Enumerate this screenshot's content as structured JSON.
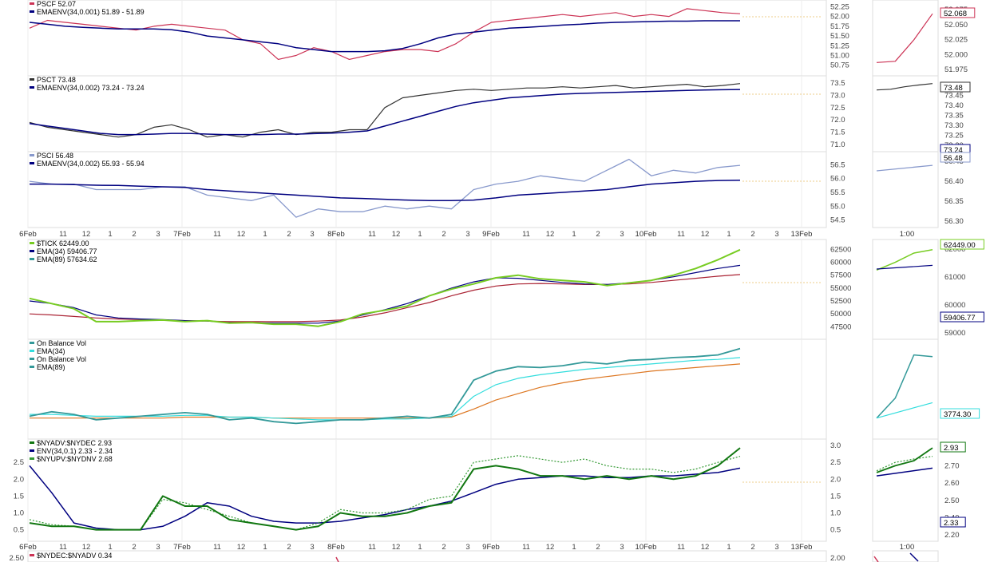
{
  "x_axis": {
    "labels": [
      "6Feb",
      "11",
      "12",
      "1",
      "2",
      "3",
      "7Feb",
      "11",
      "12",
      "1",
      "2",
      "3",
      "8Feb",
      "11",
      "12",
      "1",
      "2",
      "3",
      "9Feb",
      "11",
      "12",
      "1",
      "2",
      "3",
      "10Feb",
      "11",
      "12",
      "1",
      "2",
      "3",
      "13Feb"
    ],
    "side_label": "1:00"
  },
  "colors": {
    "pscf": "#cc3355",
    "psct": "#333333",
    "psci": "#8899cc",
    "envelope": "#000080",
    "tick": "#77cc22",
    "ema34": "#000080",
    "ema89": "#aa2233",
    "obv": "#339999",
    "obv_ema34": "#33dddd",
    "obv_ema89": "#dd7722",
    "adv": "#117711",
    "upv": "#339933"
  },
  "chart_data": [
    {
      "id": "pscf",
      "type": "line",
      "legend": [
        "PSCF 52.07",
        "EMAENV(34,0.001) 51.89 - 51.89"
      ],
      "y_ticks": [
        "52.25",
        "52.00",
        "51.75",
        "51.50",
        "51.25",
        "51.00",
        "50.75"
      ],
      "ylim": [
        50.6,
        52.3
      ],
      "side_ticks": [
        "52.075",
        "52.050",
        "52.025",
        "52.000",
        "51.975"
      ],
      "side_value": "52.068",
      "series": [
        {
          "role": "price",
          "values": [
            51.7,
            51.9,
            51.85,
            51.8,
            51.75,
            51.7,
            51.65,
            51.75,
            51.8,
            51.75,
            51.7,
            51.65,
            51.4,
            51.3,
            50.9,
            51.0,
            51.2,
            51.1,
            50.9,
            51.0,
            51.1,
            51.15,
            51.15,
            51.1,
            51.3,
            51.6,
            51.85,
            51.9,
            51.95,
            52.0,
            52.05,
            52.0,
            52.05,
            52.1,
            52.0,
            52.05,
            52.0,
            52.2,
            52.15,
            52.1,
            52.07
          ],
          "side": [
            50.82,
            50.85,
            51.4,
            52.07
          ]
        },
        {
          "role": "envelope",
          "values": [
            51.85,
            51.8,
            51.75,
            51.72,
            51.7,
            51.68,
            51.68,
            51.68,
            51.66,
            51.6,
            51.5,
            51.45,
            51.4,
            51.35,
            51.3,
            51.2,
            51.15,
            51.1,
            51.1,
            51.1,
            51.12,
            51.18,
            51.3,
            51.45,
            51.55,
            51.6,
            51.65,
            51.7,
            51.72,
            51.75,
            51.78,
            51.8,
            51.83,
            51.85,
            51.86,
            51.87,
            51.88,
            51.88,
            51.89,
            51.89,
            51.89
          ]
        }
      ]
    },
    {
      "id": "psct",
      "type": "line",
      "legend": [
        "PSCT 73.48",
        "EMAENV(34,0.002) 73.24 - 73.24"
      ],
      "y_ticks": [
        "73.5",
        "73.0",
        "72.5",
        "72.0",
        "71.5",
        "71.0"
      ],
      "ylim": [
        70.9,
        73.6
      ],
      "side_ticks": [
        "73.50",
        "73.45",
        "73.40",
        "73.35",
        "73.30",
        "73.25",
        "73.20"
      ],
      "side_value": "73.48",
      "side_value_2": "73.24",
      "series": [
        {
          "role": "price",
          "values": [
            71.9,
            71.7,
            71.6,
            71.5,
            71.4,
            71.3,
            71.4,
            71.7,
            71.8,
            71.6,
            71.3,
            71.4,
            71.3,
            71.5,
            71.6,
            71.4,
            71.5,
            71.5,
            71.6,
            71.6,
            72.5,
            72.9,
            73.0,
            73.1,
            73.2,
            73.25,
            73.2,
            73.25,
            73.3,
            73.3,
            73.35,
            73.3,
            73.35,
            73.4,
            73.3,
            73.35,
            73.4,
            73.45,
            73.35,
            73.4,
            73.48
          ],
          "side": [
            73.22,
            73.25,
            73.35,
            73.42,
            73.48
          ]
        },
        {
          "role": "envelope",
          "values": [
            71.85,
            71.75,
            71.65,
            71.55,
            71.45,
            71.4,
            71.4,
            71.42,
            71.45,
            71.45,
            71.42,
            71.4,
            71.4,
            71.4,
            71.42,
            71.42,
            71.44,
            71.46,
            71.5,
            71.55,
            71.75,
            71.95,
            72.15,
            72.35,
            72.55,
            72.7,
            72.8,
            72.9,
            72.95,
            73.0,
            73.05,
            73.08,
            73.1,
            73.12,
            73.14,
            73.16,
            73.18,
            73.2,
            73.22,
            73.23,
            73.24
          ]
        }
      ]
    },
    {
      "id": "psci",
      "type": "line",
      "legend": [
        "PSCI 56.48",
        "EMAENV(34,0.002) 55.93 - 55.94"
      ],
      "y_ticks": [
        "56.5",
        "56.0",
        "55.5",
        "55.0",
        "54.5"
      ],
      "ylim": [
        54.4,
        56.8
      ],
      "side_ticks": [
        "56.45",
        "56.40",
        "56.35",
        "56.30"
      ],
      "side_value": "56.48",
      "series": [
        {
          "role": "price",
          "values": [
            55.9,
            55.8,
            55.8,
            55.6,
            55.6,
            55.6,
            55.7,
            55.7,
            55.4,
            55.3,
            55.2,
            55.4,
            54.6,
            54.9,
            54.8,
            54.8,
            55.0,
            54.9,
            55.0,
            54.9,
            55.6,
            55.8,
            55.9,
            56.1,
            56.0,
            55.9,
            56.3,
            56.7,
            56.1,
            56.3,
            56.2,
            56.4,
            56.48
          ],
          "side": [
            56.28,
            56.48
          ]
        },
        {
          "role": "envelope",
          "values": [
            55.8,
            55.8,
            55.78,
            55.76,
            55.75,
            55.72,
            55.7,
            55.68,
            55.6,
            55.55,
            55.5,
            55.45,
            55.4,
            55.35,
            55.3,
            55.28,
            55.25,
            55.22,
            55.2,
            55.2,
            55.22,
            55.3,
            55.4,
            55.45,
            55.5,
            55.55,
            55.6,
            55.7,
            55.8,
            55.85,
            55.9,
            55.93,
            55.94
          ]
        }
      ]
    },
    {
      "id": "tick",
      "type": "line",
      "legend": [
        "$TICK 62449.00",
        "EMA(34) 59406.77",
        "EMA(89) 57634.62"
      ],
      "y_ticks": [
        "62500",
        "60000",
        "57500",
        "55000",
        "52500",
        "50000",
        "47500"
      ],
      "ylim": [
        46000,
        63500
      ],
      "side_ticks": [
        "62000",
        "61000",
        "60000",
        "59000"
      ],
      "side_value": "62449.00",
      "side_value_2": "59406.77",
      "series": [
        {
          "role": "tick",
          "values": [
            53000,
            52000,
            51000,
            48500,
            48500,
            48700,
            48800,
            48500,
            48700,
            48200,
            48300,
            48000,
            48000,
            47600,
            48500,
            50000,
            50700,
            51500,
            53500,
            54800,
            55800,
            57000,
            57500,
            56800,
            56500,
            56200,
            55500,
            56000,
            56500,
            57500,
            58800,
            60500,
            62449
          ],
          "side": [
            58500,
            60000,
            61800,
            62449
          ]
        },
        {
          "role": "ema34",
          "values": [
            52500,
            52000,
            51200,
            49800,
            49200,
            49000,
            48900,
            48700,
            48600,
            48300,
            48300,
            48200,
            48200,
            48200,
            48600,
            49800,
            50800,
            52000,
            53500,
            55000,
            56200,
            57000,
            56900,
            56500,
            56100,
            55800,
            55700,
            56000,
            56500,
            57200,
            58000,
            58800,
            59407
          ],
          "side": [
            58700,
            59407
          ]
        },
        {
          "role": "ema89",
          "values": [
            50000,
            49800,
            49500,
            49200,
            49000,
            48900,
            48800,
            48700,
            48600,
            48500,
            48500,
            48500,
            48500,
            48600,
            48800,
            49400,
            50200,
            51200,
            52200,
            53500,
            54600,
            55400,
            55800,
            55900,
            55800,
            55700,
            55700,
            55800,
            56100,
            56500,
            56900,
            57300,
            57635
          ]
        }
      ]
    },
    {
      "id": "obv",
      "type": "line",
      "legend": [
        "On Balance Vol",
        "EMA(34)",
        "On Balance Vol",
        "EMA(89)"
      ],
      "ylim": [
        0,
        100
      ],
      "side_value": "3774.30",
      "series": [
        {
          "role": "obv",
          "values": [
            20,
            25,
            22,
            16,
            18,
            20,
            22,
            24,
            22,
            16,
            18,
            14,
            12,
            14,
            16,
            16,
            18,
            20,
            18,
            22,
            60,
            70,
            75,
            74,
            76,
            80,
            78,
            82,
            83,
            85,
            86,
            88,
            95
          ],
          "side": [
            18,
            40,
            88,
            86
          ]
        },
        {
          "role": "obv_ema34",
          "values": [
            22,
            22,
            21,
            20,
            20,
            20,
            20,
            21,
            21,
            19,
            19,
            18,
            17,
            16,
            16,
            16,
            17,
            17,
            18,
            20,
            42,
            55,
            62,
            66,
            69,
            72,
            74,
            76,
            78,
            80,
            82,
            83,
            85
          ],
          "side": [
            18,
            35
          ]
        },
        {
          "role": "obv_ema89",
          "values": [
            18,
            18,
            18,
            18,
            18,
            18,
            18,
            19,
            19,
            19,
            19,
            18,
            18,
            18,
            18,
            18,
            18,
            18,
            18,
            19,
            28,
            38,
            45,
            52,
            57,
            61,
            64,
            67,
            70,
            72,
            74,
            76,
            78
          ]
        }
      ]
    },
    {
      "id": "nyadv",
      "type": "line",
      "legend": [
        "$NYADV:$NYDEC 2.93",
        "ENV(34,0.1) 2.33 - 2.34",
        "$NYUPV:$NYDNV 2.68"
      ],
      "y_ticks_left": [
        "2.5",
        "2.0",
        "1.5",
        "1.0",
        "0.5"
      ],
      "y_ticks_right": [
        "3.0",
        "2.5",
        "2.0",
        "1.5",
        "1.0",
        "0.5"
      ],
      "ylim": [
        0.3,
        3.05
      ],
      "side_ticks": [
        "2.80",
        "2.70",
        "2.60",
        "2.50",
        "2.40",
        "2.20"
      ],
      "side_value": "2.93",
      "side_value_2": "2.33",
      "series": [
        {
          "role": "adv",
          "values": [
            0.7,
            0.6,
            0.6,
            0.5,
            0.5,
            0.5,
            1.5,
            1.2,
            1.2,
            0.8,
            0.7,
            0.6,
            0.5,
            0.6,
            1.0,
            0.9,
            0.9,
            1.0,
            1.2,
            1.3,
            2.3,
            2.4,
            2.3,
            2.1,
            2.1,
            2.0,
            2.1,
            2.0,
            2.1,
            2.0,
            2.1,
            2.4,
            2.93
          ],
          "side": [
            2.2,
            2.4,
            2.55,
            2.93
          ]
        },
        {
          "role": "upv",
          "values": [
            0.8,
            0.65,
            0.6,
            0.5,
            0.5,
            0.5,
            1.4,
            1.3,
            1.1,
            0.9,
            0.7,
            0.6,
            0.5,
            0.7,
            1.1,
            1.0,
            1.0,
            1.1,
            1.4,
            1.5,
            2.5,
            2.6,
            2.7,
            2.6,
            2.5,
            2.6,
            2.4,
            2.3,
            2.3,
            2.2,
            2.3,
            2.5,
            2.68
          ],
          "side": [
            2.25,
            2.5,
            2.6,
            2.68
          ]
        },
        {
          "role": "env",
          "values": [
            2.4,
            1.6,
            0.7,
            0.55,
            0.5,
            0.5,
            0.6,
            0.9,
            1.3,
            1.2,
            0.9,
            0.75,
            0.7,
            0.7,
            0.75,
            0.85,
            0.95,
            1.1,
            1.2,
            1.35,
            1.6,
            1.85,
            2.0,
            2.05,
            2.1,
            2.1,
            2.05,
            2.05,
            2.1,
            2.1,
            2.15,
            2.2,
            2.33
          ],
          "side": [
            2.1,
            2.33
          ]
        }
      ]
    },
    {
      "id": "nydec",
      "type": "line",
      "legend": [
        "$NYDEC:$NYADV 0.34"
      ],
      "y_ticks": [
        "2.50"
      ],
      "side_ticks": [
        "2.00"
      ]
    }
  ]
}
